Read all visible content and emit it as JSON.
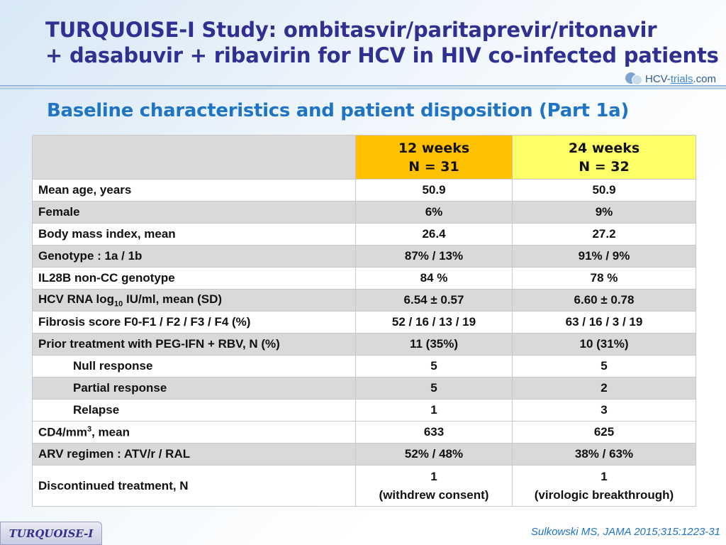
{
  "title": {
    "line1": "TURQUOISE-I Study: ombitasvir/paritaprevir/ritonavir",
    "line2": "+ dasabuvir + ribavirin for HCV in HIV co-infected patients"
  },
  "logo": {
    "part1": "HCV-",
    "part2": "trials",
    "part3": ".com"
  },
  "subtitle": "Baseline characteristics and patient disposition (Part 1a)",
  "table": {
    "headers": [
      {
        "line1": "",
        "line2": ""
      },
      {
        "line1": "12 weeks",
        "line2": "N = 31"
      },
      {
        "line1": "24 weeks",
        "line2": "N = 32"
      }
    ],
    "rows": [
      {
        "label": "Mean age, years",
        "v1": "50.9",
        "v2": "50.9"
      },
      {
        "label": "Female",
        "v1": "6%",
        "v2": "9%"
      },
      {
        "label": "Body mass index, mean",
        "v1": "26.4",
        "v2": "27.2"
      },
      {
        "label": "Genotype : 1a / 1b",
        "v1": "87% / 13%",
        "v2": "91% / 9%"
      },
      {
        "label": "IL28B non-CC genotype",
        "v1": "84 %",
        "v2": "78 %"
      },
      {
        "label_pre": "HCV RNA log",
        "label_sub": "10",
        "label_post": " IU/ml, mean (SD)",
        "v1": "6.54 ± 0.57",
        "v2": "6.60 ± 0.78"
      },
      {
        "label": "Fibrosis score F0-F1 / F2 / F3 / F4 (%)",
        "v1": "52 / 16 / 13 / 19",
        "v2": "63 / 16 / 3 / 19"
      },
      {
        "label": "Prior treatment with PEG-IFN + RBV, N (%)",
        "v1": "11 (35%)",
        "v2": "10 (31%)"
      },
      {
        "label": "Null response",
        "v1": "5",
        "v2": "5"
      },
      {
        "label": "Partial response",
        "v1": "5",
        "v2": "2"
      },
      {
        "label": "Relapse",
        "v1": "1",
        "v2": "3"
      },
      {
        "label_pre": "CD4/mm",
        "label_sup": "3",
        "label_post": ", mean",
        "v1": "633",
        "v2": "625"
      },
      {
        "label": "ARV regimen : ATV/r  /  RAL",
        "v1": "52% / 48%",
        "v2": "38% / 63%"
      },
      {
        "label": "Discontinued treatment, N",
        "v1_line1": "1",
        "v1_line2": "(withdrew consent)",
        "v2_line1": "1",
        "v2_line2": "(virologic breakthrough)"
      }
    ]
  },
  "footer": {
    "tab": "TURQUOISE-I",
    "citation": "Sulkowski MS, JAMA 2015;315:1223-31"
  },
  "colors": {
    "title": "#2e3192",
    "subtitle": "#1f74c4",
    "header_12w": "#ffc000",
    "header_24w": "#fefe66",
    "row_shade": "#d9d9d9"
  }
}
